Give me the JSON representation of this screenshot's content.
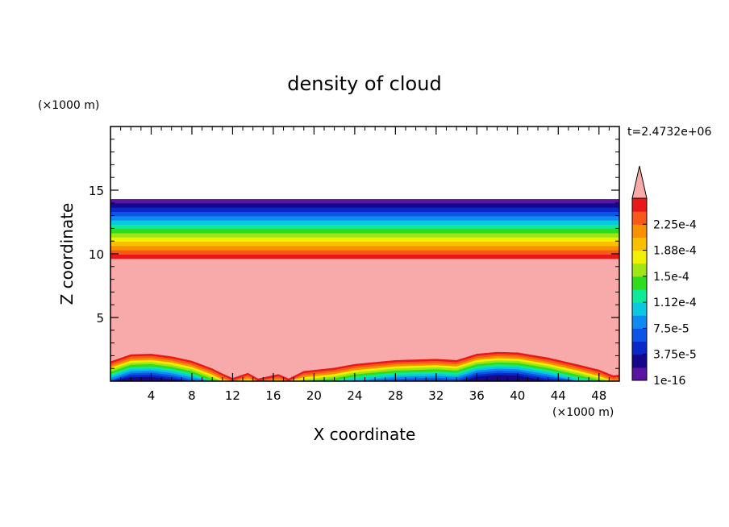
{
  "chart_data": {
    "type": "heatmap",
    "title": "density of cloud",
    "xlabel": "X coordinate",
    "ylabel": "Z coordinate",
    "x_unit": "(×1000 m)",
    "y_unit": "(×1000 m)",
    "time_label": "t=2.4732e+06",
    "xlim": [
      0,
      50
    ],
    "ylim": [
      0,
      20
    ],
    "x_ticks": [
      4,
      8,
      12,
      16,
      20,
      24,
      28,
      32,
      36,
      40,
      44,
      48
    ],
    "y_ticks": [
      5,
      10,
      15
    ],
    "grid": false,
    "colorbar": {
      "position": "right",
      "levels": [
        1e-16,
        1.875e-05,
        3.75e-05,
        5.625e-05,
        7.5e-05,
        9.375e-05,
        0.0001125,
        0.00013125,
        0.00015,
        0.00016875,
        0.0001875,
        0.00020625,
        0.000225,
        0.00024375,
        0.0002625
      ],
      "tick_labels": [
        "1e-16",
        "3.75e-5",
        "7.5e-5",
        "1.12e-4",
        "1.5e-4",
        "1.88e-4",
        "2.25e-4"
      ],
      "colors": [
        "#5a14a0",
        "#15088c",
        "#0a28c8",
        "#0c54e6",
        "#0e8af0",
        "#0ac8e0",
        "#10e89a",
        "#30dc1e",
        "#a0e614",
        "#f0f000",
        "#f8c000",
        "#f89000",
        "#f85818",
        "#e81818"
      ],
      "overflow_color": "#f8aaaa"
    },
    "cloud_top_layer": {
      "z_bottom": 9.6,
      "z_top": 14.3
    },
    "low_cloud_top_profile": [
      [
        0,
        1.55
      ],
      [
        2,
        2.1
      ],
      [
        4,
        2.15
      ],
      [
        6,
        1.95
      ],
      [
        8,
        1.6
      ],
      [
        10,
        1.0
      ],
      [
        11,
        0.6
      ],
      [
        12,
        0.25
      ],
      [
        13.5,
        0.65
      ],
      [
        14.5,
        0.2
      ],
      [
        16.5,
        0.55
      ],
      [
        17.5,
        0.2
      ],
      [
        19,
        0.8
      ],
      [
        22,
        1.05
      ],
      [
        24,
        1.35
      ],
      [
        28,
        1.65
      ],
      [
        32,
        1.75
      ],
      [
        34,
        1.65
      ],
      [
        35,
        1.9
      ],
      [
        36,
        2.15
      ],
      [
        38,
        2.3
      ],
      [
        40,
        2.25
      ],
      [
        43,
        1.85
      ],
      [
        46,
        1.3
      ],
      [
        48,
        0.9
      ],
      [
        49.4,
        0.45
      ],
      [
        50,
        0.5
      ]
    ]
  }
}
